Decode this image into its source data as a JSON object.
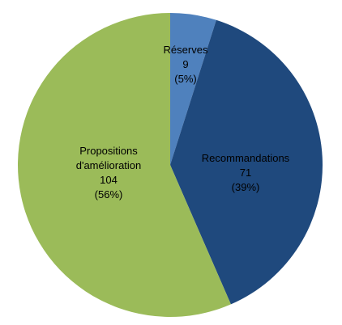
{
  "chart_data": {
    "type": "pie",
    "categories": [
      "Réserves",
      "Recommandations",
      "Propositions d'amélioration"
    ],
    "values": [
      9,
      71,
      104
    ],
    "value_labels": [
      "(5%)",
      "(39%)",
      "(56%)"
    ],
    "colors": [
      "#4f81bd",
      "#1f497d",
      "#9bbb59"
    ]
  }
}
